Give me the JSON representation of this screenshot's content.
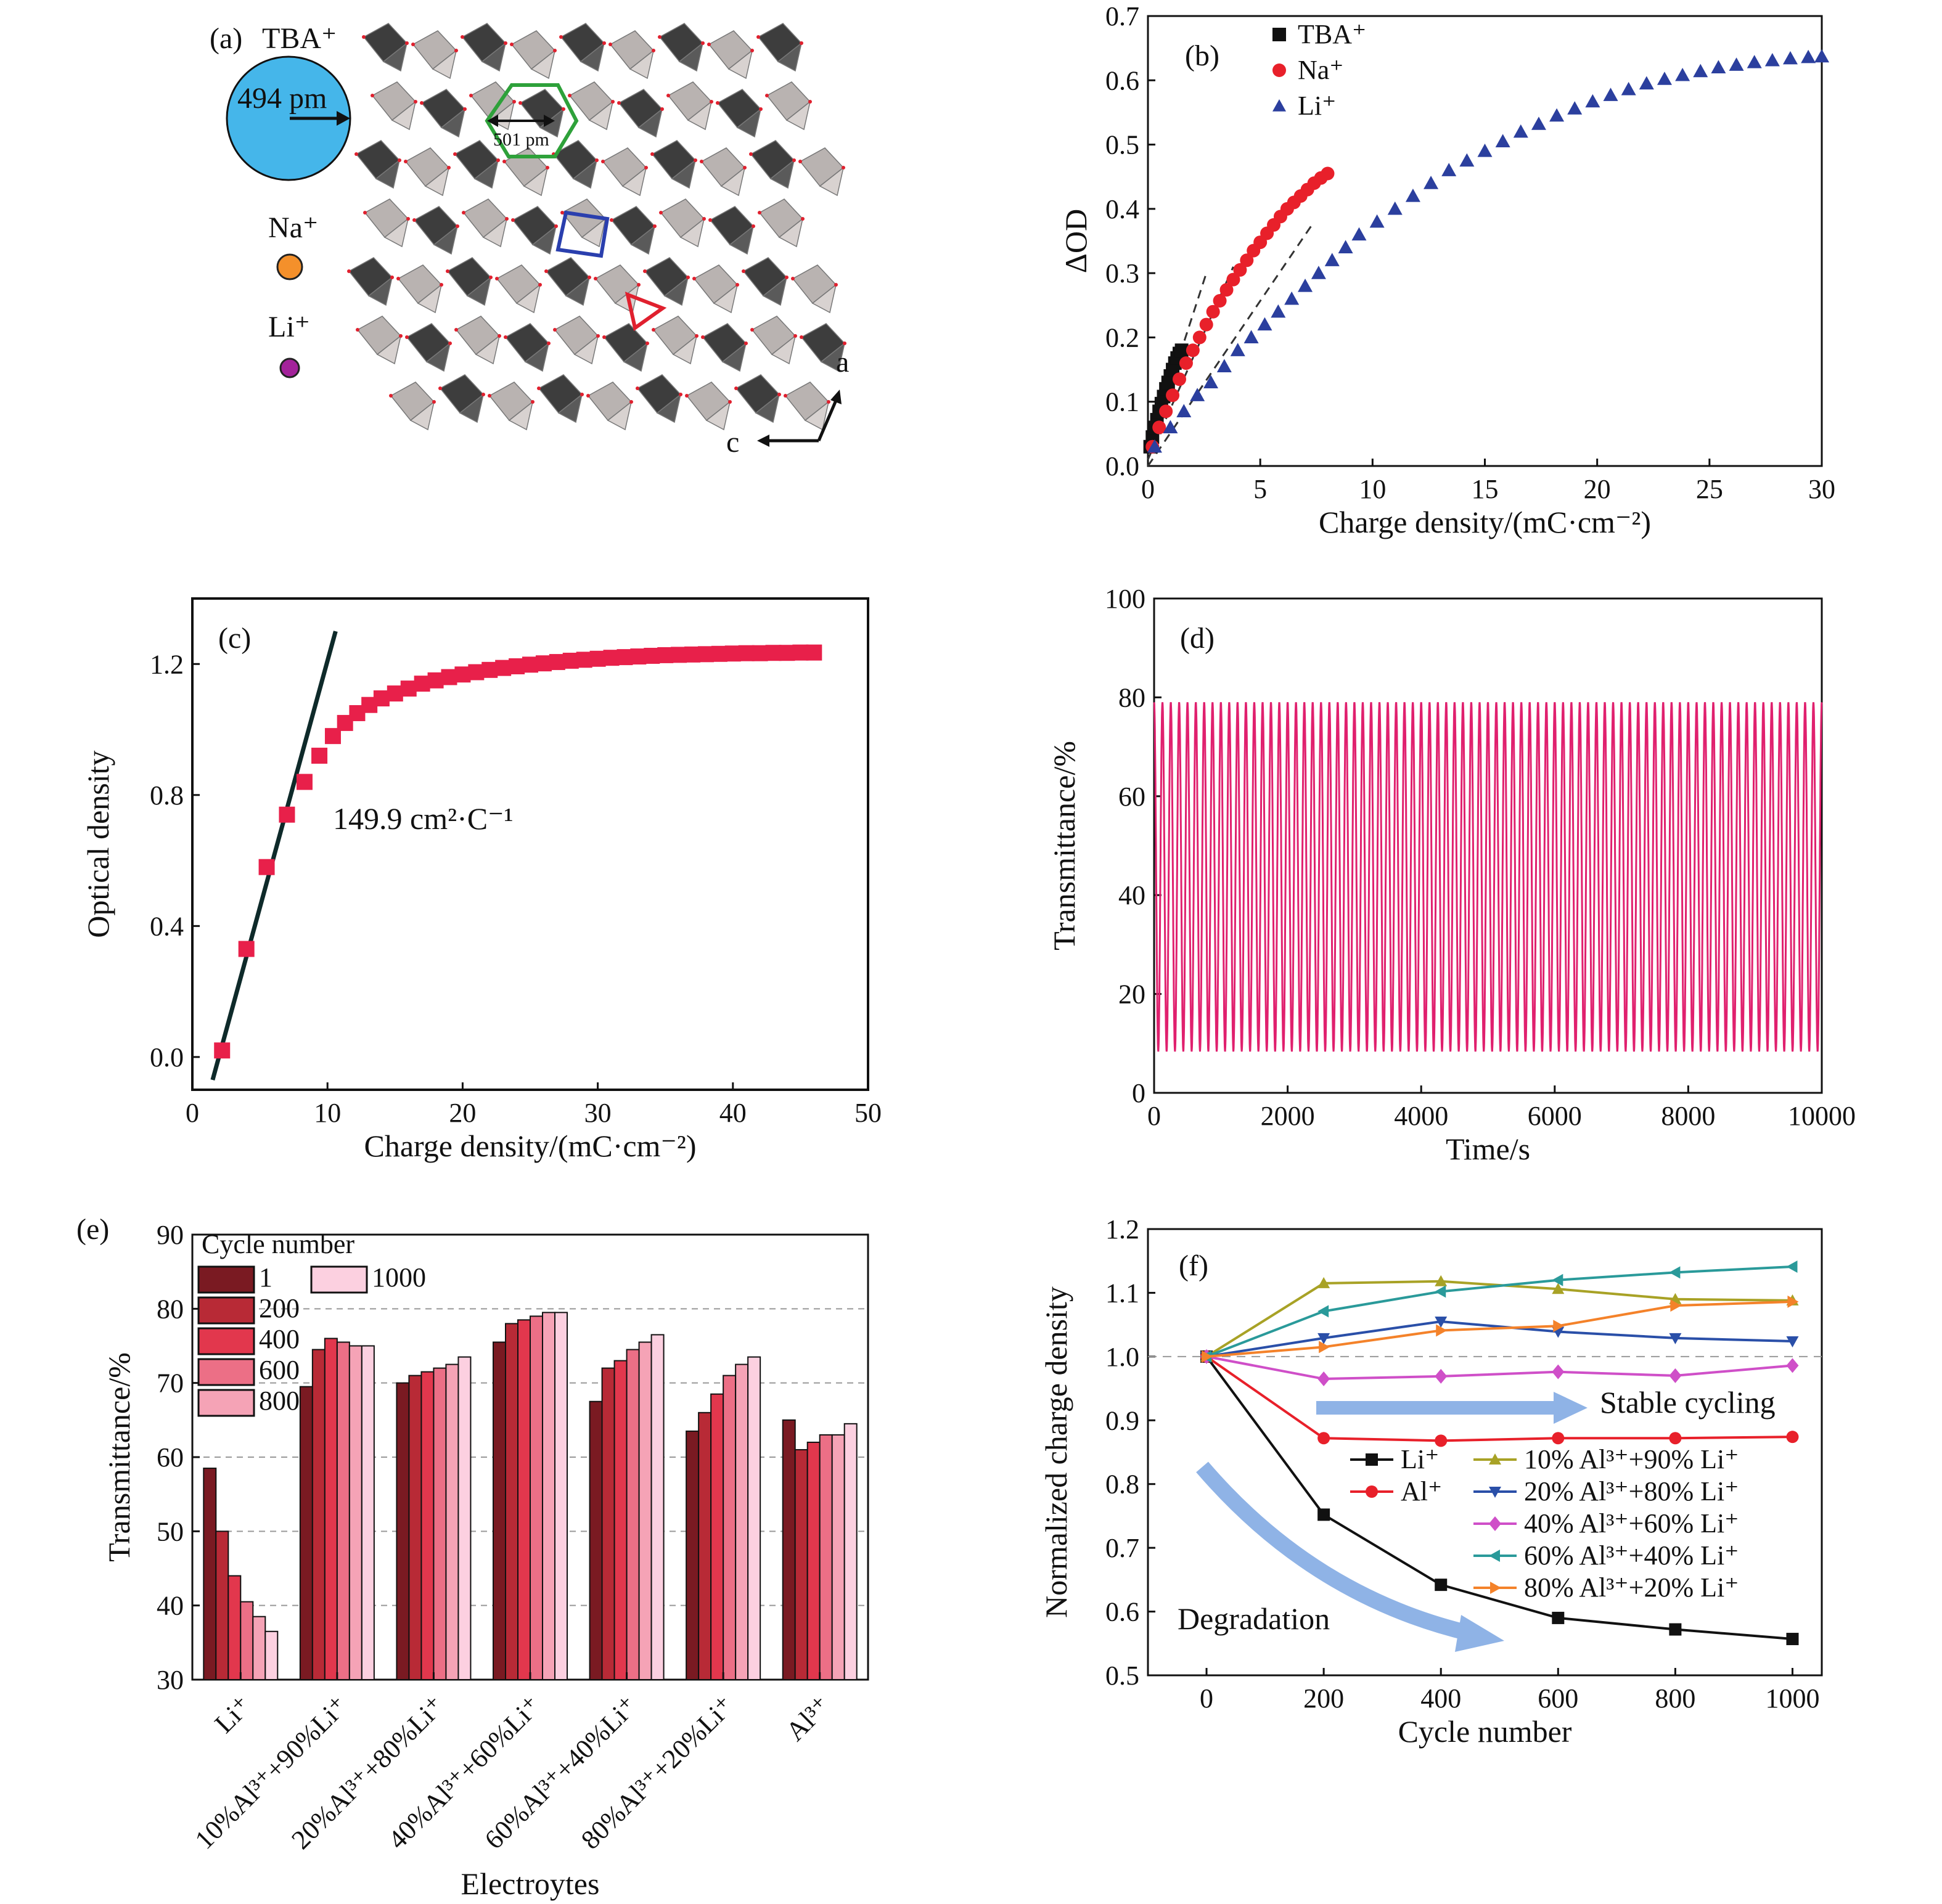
{
  "panel_a": {
    "label": "(a)",
    "ions": [
      {
        "name": "TBA⁺",
        "color": "#45b6ea",
        "size_label": "494 pm"
      },
      {
        "name": "Na⁺",
        "color": "#f4902b"
      },
      {
        "name": "Li⁺",
        "color": "#a3229a"
      }
    ],
    "pore_label": "501 pm",
    "axes": {
      "a": "a",
      "c": "c"
    }
  },
  "chart_data": [
    {
      "id": "b",
      "panel_label": "(b)",
      "type": "scatter",
      "xlabel": "Charge density/(mC·cm⁻²)",
      "ylabel": "ΔOD",
      "xlim": [
        0,
        30
      ],
      "ylim": [
        0,
        0.7
      ],
      "xticks": [
        "0",
        "5",
        "10",
        "15",
        "20",
        "25",
        "30"
      ],
      "yticks": [
        "0.0",
        "0.1",
        "0.2",
        "0.3",
        "0.4",
        "0.5",
        "0.6",
        "0.7"
      ],
      "legend_position": "top-left",
      "series": [
        {
          "name": "TBA⁺",
          "color": "#111111",
          "marker": "square",
          "points": [
            [
              0.1,
              0.03
            ],
            [
              0.2,
              0.045
            ],
            [
              0.3,
              0.06
            ],
            [
              0.4,
              0.072
            ],
            [
              0.5,
              0.085
            ],
            [
              0.6,
              0.097
            ],
            [
              0.7,
              0.108
            ],
            [
              0.8,
              0.12
            ],
            [
              0.9,
              0.13
            ],
            [
              1.0,
              0.14
            ],
            [
              1.1,
              0.15
            ],
            [
              1.2,
              0.16
            ],
            [
              1.3,
              0.168
            ],
            [
              1.4,
              0.175
            ],
            [
              1.5,
              0.18
            ]
          ]
        },
        {
          "name": "Na⁺",
          "color": "#e8202a",
          "marker": "circle",
          "points": [
            [
              0.2,
              0.03
            ],
            [
              0.5,
              0.06
            ],
            [
              0.8,
              0.085
            ],
            [
              1.1,
              0.11
            ],
            [
              1.4,
              0.135
            ],
            [
              1.7,
              0.16
            ],
            [
              2.0,
              0.18
            ],
            [
              2.3,
              0.2
            ],
            [
              2.6,
              0.22
            ],
            [
              2.9,
              0.24
            ],
            [
              3.2,
              0.257
            ],
            [
              3.5,
              0.274
            ],
            [
              3.8,
              0.29
            ],
            [
              4.1,
              0.305
            ],
            [
              4.4,
              0.32
            ],
            [
              4.7,
              0.335
            ],
            [
              5.0,
              0.348
            ],
            [
              5.3,
              0.362
            ],
            [
              5.6,
              0.375
            ],
            [
              5.9,
              0.388
            ],
            [
              6.2,
              0.4
            ],
            [
              6.5,
              0.41
            ],
            [
              6.8,
              0.42
            ],
            [
              7.1,
              0.43
            ],
            [
              7.4,
              0.44
            ],
            [
              7.7,
              0.448
            ],
            [
              8.0,
              0.455
            ]
          ]
        },
        {
          "name": "Li⁺",
          "color": "#2b3f9e",
          "marker": "triangle",
          "points": [
            [
              0.3,
              0.03
            ],
            [
              1.0,
              0.06
            ],
            [
              1.6,
              0.085
            ],
            [
              2.2,
              0.11
            ],
            [
              2.8,
              0.13
            ],
            [
              3.4,
              0.155
            ],
            [
              4.0,
              0.18
            ],
            [
              4.6,
              0.2
            ],
            [
              5.2,
              0.22
            ],
            [
              5.8,
              0.24
            ],
            [
              6.4,
              0.26
            ],
            [
              7.0,
              0.28
            ],
            [
              7.6,
              0.3
            ],
            [
              8.2,
              0.32
            ],
            [
              8.8,
              0.34
            ],
            [
              9.4,
              0.36
            ],
            [
              10.2,
              0.38
            ],
            [
              11.0,
              0.4
            ],
            [
              11.8,
              0.42
            ],
            [
              12.6,
              0.44
            ],
            [
              13.4,
              0.46
            ],
            [
              14.2,
              0.475
            ],
            [
              15.0,
              0.49
            ],
            [
              15.8,
              0.505
            ],
            [
              16.6,
              0.52
            ],
            [
              17.4,
              0.532
            ],
            [
              18.2,
              0.545
            ],
            [
              19.0,
              0.556
            ],
            [
              19.8,
              0.567
            ],
            [
              20.6,
              0.577
            ],
            [
              21.4,
              0.586
            ],
            [
              22.2,
              0.595
            ],
            [
              23.0,
              0.602
            ],
            [
              23.8,
              0.608
            ],
            [
              24.6,
              0.614
            ],
            [
              25.4,
              0.62
            ],
            [
              26.2,
              0.624
            ],
            [
              27.0,
              0.628
            ],
            [
              27.8,
              0.631
            ],
            [
              28.6,
              0.634
            ],
            [
              29.4,
              0.636
            ],
            [
              30.0,
              0.637
            ]
          ]
        }
      ],
      "fit_lines": [
        {
          "color": "#333333",
          "dash": true,
          "points": [
            [
              0,
              0.02
            ],
            [
              2.6,
              0.3
            ]
          ]
        },
        {
          "color": "#333333",
          "dash": true,
          "points": [
            [
              0,
              0.01
            ],
            [
              3.8,
              0.31
            ]
          ]
        },
        {
          "color": "#333333",
          "dash": true,
          "points": [
            [
              0,
              0.0
            ],
            [
              7.3,
              0.375
            ]
          ]
        }
      ]
    },
    {
      "id": "c",
      "panel_label": "(c)",
      "type": "scatter",
      "xlabel": "Charge density/(mC·cm⁻²)",
      "ylabel": "Optical density",
      "xlim": [
        0,
        50
      ],
      "ylim": [
        -0.1,
        1.4
      ],
      "xticks": [
        "0",
        "10",
        "20",
        "30",
        "40",
        "50"
      ],
      "yticks": [
        "0.0",
        "0.4",
        "0.8",
        "1.2"
      ],
      "annotation": "149.9 cm²·C⁻¹",
      "series": [
        {
          "name": "",
          "color": "#e8204a",
          "marker": "square",
          "points": [
            [
              2.2,
              0.02
            ],
            [
              4.0,
              0.33
            ],
            [
              5.5,
              0.58
            ],
            [
              7.0,
              0.74
            ],
            [
              8.3,
              0.84
            ],
            [
              9.4,
              0.92
            ],
            [
              10.4,
              0.98
            ],
            [
              11.3,
              1.02
            ],
            [
              12.2,
              1.05
            ],
            [
              13.1,
              1.075
            ],
            [
              14.0,
              1.095
            ],
            [
              15.0,
              1.11
            ],
            [
              16.0,
              1.125
            ],
            [
              17.0,
              1.14
            ],
            [
              18.0,
              1.15
            ],
            [
              19.0,
              1.16
            ],
            [
              20.0,
              1.168
            ],
            [
              21.0,
              1.175
            ],
            [
              22.0,
              1.182
            ],
            [
              23.0,
              1.188
            ],
            [
              24.0,
              1.193
            ],
            [
              25.0,
              1.198
            ],
            [
              26.0,
              1.202
            ],
            [
              27.0,
              1.206
            ],
            [
              28.0,
              1.21
            ],
            [
              29.0,
              1.213
            ],
            [
              30.0,
              1.216
            ],
            [
              31.0,
              1.219
            ],
            [
              32.0,
              1.221
            ],
            [
              33.0,
              1.223
            ],
            [
              34.0,
              1.225
            ],
            [
              35.0,
              1.227
            ],
            [
              36.0,
              1.228
            ],
            [
              37.0,
              1.229
            ],
            [
              38.0,
              1.23
            ],
            [
              39.0,
              1.231
            ],
            [
              40.0,
              1.232
            ],
            [
              41.0,
              1.233
            ],
            [
              42.0,
              1.233
            ],
            [
              43.0,
              1.234
            ],
            [
              44.0,
              1.234
            ],
            [
              45.0,
              1.235
            ],
            [
              46.0,
              1.235
            ]
          ]
        }
      ],
      "fit_lines": [
        {
          "color": "#0e2a2a",
          "dash": false,
          "points": [
            [
              1.5,
              -0.07
            ],
            [
              10.6,
              1.3
            ]
          ]
        }
      ]
    },
    {
      "id": "d",
      "panel_label": "(d)",
      "type": "line",
      "xlabel": "Time/s",
      "ylabel": "Transmittance/%",
      "xlim": [
        0,
        10000
      ],
      "ylim": [
        0,
        100
      ],
      "xticks": [
        "0",
        "2000",
        "4000",
        "6000",
        "8000",
        "10000"
      ],
      "yticks": [
        "0",
        "20",
        "40",
        "60",
        "80",
        "100"
      ],
      "series": [
        {
          "name": "",
          "color": "#e0206e",
          "cycles": 80,
          "period_s": 125,
          "max": 79,
          "min": 8.5
        }
      ]
    },
    {
      "id": "e",
      "panel_label": "(e)",
      "type": "bar",
      "xlabel": "Electroytes",
      "ylabel": "Transmittance/%",
      "ylim": [
        30,
        90
      ],
      "yticks": [
        "30",
        "40",
        "50",
        "60",
        "70",
        "80",
        "90"
      ],
      "grid": true,
      "legend_title": "Cycle number",
      "legend_position": "top-left",
      "categories": [
        "Li⁺",
        "10%Al³⁺+90%Li⁺",
        "20%Al³⁺+80%Li⁺",
        "40%Al³⁺+60%Li⁺",
        "60%Al³⁺+40%Li⁺",
        "80%Al³⁺+20%Li⁺",
        "Al³⁺"
      ],
      "series": [
        {
          "name": "1",
          "color": "#7a1a22",
          "values": [
            58.5,
            69.5,
            70,
            75.5,
            67.5,
            63.5,
            65
          ]
        },
        {
          "name": "200",
          "color": "#b82a36",
          "values": [
            50,
            74.5,
            71,
            78,
            72,
            66,
            61
          ]
        },
        {
          "name": "400",
          "color": "#e2374d",
          "values": [
            44,
            76,
            71.5,
            78.5,
            73,
            68.5,
            62
          ]
        },
        {
          "name": "600",
          "color": "#ec6f86",
          "values": [
            40.5,
            75.5,
            72,
            79,
            74.5,
            71,
            63
          ]
        },
        {
          "name": "800",
          "color": "#f5a3b6",
          "values": [
            38.5,
            75,
            72.5,
            79.5,
            75.5,
            72.5,
            63
          ]
        },
        {
          "name": "1000",
          "color": "#fcd0e0",
          "values": [
            36.5,
            75,
            73.5,
            79.5,
            76.5,
            73.5,
            64.5
          ]
        }
      ]
    },
    {
      "id": "f",
      "panel_label": "(f)",
      "type": "line",
      "xlabel": "Cycle number",
      "ylabel": "Normalized charge density",
      "xlim": [
        -100,
        1050
      ],
      "ylim": [
        0.5,
        1.2
      ],
      "xticks": [
        "0",
        "200",
        "400",
        "600",
        "800",
        "1000"
      ],
      "yticks": [
        "0.5",
        "0.6",
        "0.7",
        "0.8",
        "0.9",
        "1.0",
        "1.1",
        "1.2"
      ],
      "reference_line": 1.0,
      "x": [
        0,
        200,
        400,
        600,
        800,
        1000
      ],
      "series": [
        {
          "name": "Li⁺",
          "color": "#111111",
          "marker": "square",
          "values": [
            1.0,
            0.752,
            0.642,
            0.59,
            0.572,
            0.557
          ]
        },
        {
          "name": "Al⁺",
          "color": "#e8202a",
          "marker": "circle",
          "values": [
            1.0,
            0.872,
            0.868,
            0.872,
            0.872,
            0.874
          ]
        },
        {
          "name": "10% Al³⁺+90% Li⁺",
          "color": "#a8a226",
          "marker": "triangle-up",
          "values": [
            1.0,
            1.115,
            1.118,
            1.106,
            1.09,
            1.088
          ]
        },
        {
          "name": "20% Al³⁺+80% Li⁺",
          "color": "#2a4fa8",
          "marker": "triangle-down",
          "values": [
            1.0,
            1.029,
            1.055,
            1.039,
            1.029,
            1.024
          ]
        },
        {
          "name": "40% Al³⁺+60% Li⁺",
          "color": "#cf4fc8",
          "marker": "diamond",
          "values": [
            1.0,
            0.965,
            0.969,
            0.976,
            0.97,
            0.986
          ]
        },
        {
          "name": "60% Al³⁺+40% Li⁺",
          "color": "#2a9a9a",
          "marker": "triangle-left",
          "values": [
            1.0,
            1.071,
            1.102,
            1.12,
            1.132,
            1.141
          ]
        },
        {
          "name": "80% Al³⁺+20% Li⁺",
          "color": "#f4822a",
          "marker": "triangle-right",
          "values": [
            1.0,
            1.015,
            1.041,
            1.048,
            1.08,
            1.086
          ]
        }
      ],
      "annotations": [
        "Stable cycling",
        "Degradation"
      ],
      "arrow_color": "#8fb3e6"
    }
  ]
}
